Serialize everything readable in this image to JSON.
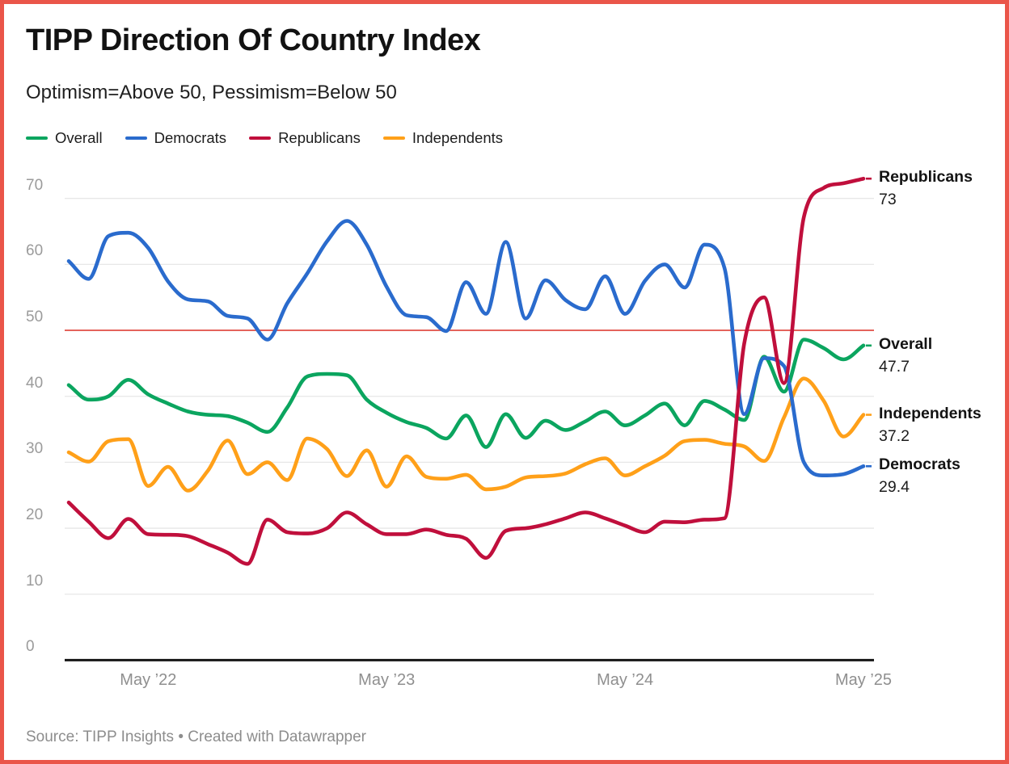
{
  "frame": {
    "border_color": "#ea5549",
    "background": "#ffffff"
  },
  "header": {
    "title": "TIPP Direction Of Country Index",
    "subtitle": "Optimism=Above 50, Pessimism=Below 50"
  },
  "legend": {
    "items": [
      {
        "label": "Overall",
        "color": "#0ba55f"
      },
      {
        "label": "Democrats",
        "color": "#2a6bcd"
      },
      {
        "label": "Republicans",
        "color": "#c00f3c"
      },
      {
        "label": "Independents",
        "color": "#ffa019"
      }
    ]
  },
  "chart_data": {
    "type": "line",
    "title": "TIPP Direction Of Country Index",
    "subtitle": "Optimism=Above 50, Pessimism=Below 50",
    "grid": "horizontal",
    "legend_position": "top",
    "x_months": [
      "Jan 2022",
      "Feb 2022",
      "Mar 2022",
      "Apr 2022",
      "May 2022",
      "Jun 2022",
      "Jul 2022",
      "Aug 2022",
      "Sep 2022",
      "Oct 2022",
      "Nov 2022",
      "Dec 2022",
      "Jan 2023",
      "Feb 2023",
      "Mar 2023",
      "Apr 2023",
      "May 2023",
      "Jun 2023",
      "Jul 2023",
      "Aug 2023",
      "Sep 2023",
      "Oct 2023",
      "Nov 2023",
      "Dec 2023",
      "Jan 2024",
      "Feb 2024",
      "Mar 2024",
      "Apr 2024",
      "May 2024",
      "Jun 2024",
      "Jul 2024",
      "Aug 2024",
      "Sep 2024",
      "Oct 2024",
      "Nov 2024",
      "Dec 2024",
      "Jan 2025",
      "Feb 2025",
      "Mar 2025",
      "Apr 2025",
      "May 2025"
    ],
    "x_axis": {
      "tick_labels": [
        "May ’22",
        "May ’23",
        "May ’24",
        "May ’25"
      ],
      "tick_month_indices": [
        4,
        16,
        28,
        40
      ]
    },
    "y_axis": {
      "ticks": [
        0,
        10,
        20,
        30,
        40,
        50,
        60,
        70
      ],
      "ylim": [
        0,
        75
      ]
    },
    "reference_line": {
      "value": 50,
      "color": "#e4635c"
    },
    "gridline_color": "#e7e7e7",
    "axis_line_color": "#161616",
    "series": [
      {
        "name": "Overall",
        "color": "#0ba55f",
        "end_label": "Overall",
        "end_value_label": "47.7",
        "values": [
          41.7,
          39.5,
          40.0,
          42.5,
          40.3,
          38.9,
          37.7,
          37.2,
          37.0,
          36.0,
          34.6,
          38.3,
          43.0,
          43.4,
          43.2,
          39.5,
          37.5,
          36.1,
          35.2,
          33.6,
          37.1,
          32.3,
          37.3,
          33.7,
          36.3,
          34.9,
          36.2,
          37.7,
          35.6,
          37.1,
          38.9,
          35.6,
          39.3,
          38.0,
          36.4,
          46.0,
          40.7,
          48.6,
          47.3,
          45.6,
          47.7
        ]
      },
      {
        "name": "Democrats",
        "color": "#2a6bcd",
        "end_label": "Democrats",
        "end_value_label": "29.4",
        "values": [
          60.5,
          57.8,
          64.3,
          64.8,
          62.5,
          57.4,
          54.7,
          54.4,
          52.2,
          51.8,
          48.6,
          54.1,
          58.6,
          63.5,
          66.6,
          63.0,
          56.6,
          52.3,
          52.0,
          49.9,
          57.3,
          52.5,
          63.4,
          51.8,
          57.6,
          54.6,
          53.2,
          58.2,
          52.5,
          57.5,
          60.0,
          56.5,
          63.0,
          59.5,
          37.3,
          45.8,
          44.6,
          30.0,
          28.0,
          28.2,
          29.4
        ]
      },
      {
        "name": "Republicans",
        "color": "#c00f3c",
        "end_label": "Republicans",
        "end_value_label": "73",
        "values": [
          23.9,
          21.0,
          18.5,
          21.4,
          19.1,
          19.0,
          18.8,
          17.6,
          16.3,
          14.6,
          21.3,
          19.4,
          19.2,
          20.0,
          22.4,
          20.6,
          19.1,
          19.1,
          19.8,
          19.0,
          18.4,
          15.5,
          19.6,
          20.0,
          20.6,
          21.5,
          22.4,
          21.5,
          20.4,
          19.4,
          21.0,
          20.9,
          21.3,
          21.5,
          48.0,
          55.0,
          42.0,
          67.2,
          71.6,
          72.3,
          73.0
        ]
      },
      {
        "name": "Independents",
        "color": "#ffa019",
        "end_label": "Independents",
        "end_value_label": "37.2",
        "values": [
          31.5,
          30.1,
          33.2,
          33.5,
          26.4,
          29.3,
          25.7,
          28.7,
          33.3,
          28.2,
          30.0,
          27.3,
          33.6,
          32.0,
          27.9,
          31.8,
          26.3,
          30.9,
          27.8,
          27.5,
          28.1,
          25.9,
          26.3,
          27.7,
          27.9,
          28.3,
          29.7,
          30.6,
          28.0,
          29.4,
          31.0,
          33.2,
          33.4,
          32.8,
          32.4,
          30.2,
          36.8,
          42.7,
          39.3,
          33.9,
          37.2
        ]
      }
    ]
  },
  "footer": {
    "source": "Source: TIPP Insights • Created with Datawrapper"
  }
}
